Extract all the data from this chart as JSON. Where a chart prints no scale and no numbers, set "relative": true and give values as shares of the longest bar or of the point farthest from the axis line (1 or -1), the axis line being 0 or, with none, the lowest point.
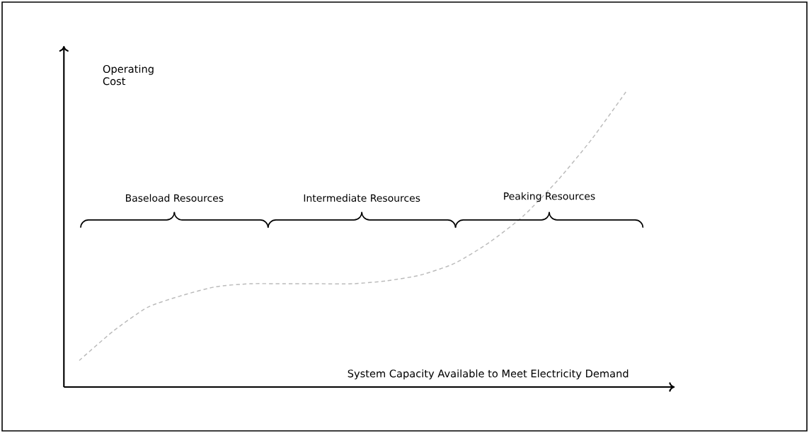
{
  "chart_data": {
    "type": "line",
    "xlabel": "System Capacity Available to Meet Electricity Demand",
    "ylabel": "Operating Cost",
    "relative": true,
    "categories": [
      null,
      null,
      null,
      null,
      null,
      null,
      null,
      null,
      null,
      null,
      null,
      null,
      null,
      null,
      null,
      null,
      null
    ],
    "series": [
      {
        "color": "#bbbbbb",
        "values": [
          0.09,
          0.19,
          0.27,
          0.31,
          0.34,
          0.35,
          0.35,
          0.35,
          0.35,
          0.36,
          0.38,
          0.42,
          0.49,
          0.58,
          0.7,
          0.84,
          1.0
        ]
      }
    ],
    "line_style": "dashed",
    "marker": "none",
    "annotations": [
      "Baseload Resources",
      "Intermediate Resources",
      "Peaking Resources"
    ]
  }
}
